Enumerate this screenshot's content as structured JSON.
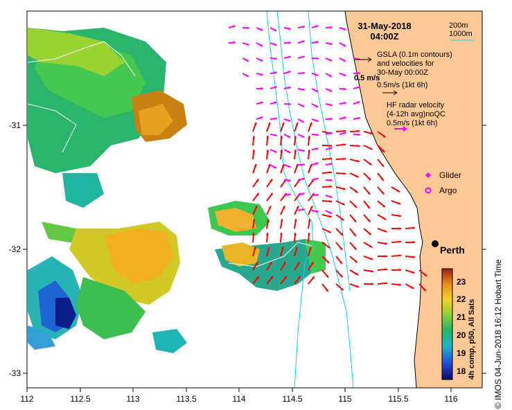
{
  "map": {
    "date": "31-May-2018",
    "time": "04:00Z",
    "x_ticks": [
      "112",
      "112.5",
      "113",
      "113.5",
      "114",
      "114.5",
      "115",
      "115.5",
      "116"
    ],
    "y_ticks": [
      "-31",
      "-32",
      "-33"
    ],
    "depth_legend": {
      "line1": "200m",
      "line2": "1000m"
    },
    "gsla_legend": {
      "line1": "GSLA (0.1m contours)",
      "line2": "and velocities for",
      "line3": "30-May 00:00Z",
      "ref_big": "0.5 m/s",
      "ref_small": "0.5m/s (1kt 6h)"
    },
    "hf_legend": {
      "line1": "HF radar velocity",
      "line2": "(4-12h avg)noQC",
      "line3": "0.5m/s (1kt 6h)"
    },
    "markers": {
      "glider": "Glider",
      "argo": "Argo"
    },
    "city": "Perth",
    "colorbar": {
      "ticks": [
        "23",
        "22",
        "21",
        "20",
        "19",
        "18"
      ],
      "label": "4h comp, p50, All Sats"
    },
    "credit": "© IMOS 04-Jun-2018 16:12 Hobart Time",
    "colors": {
      "land": "#fbc896",
      "hf": "#ff00ff",
      "alt": "#ff0000",
      "bathy": "#00d8ff"
    }
  }
}
